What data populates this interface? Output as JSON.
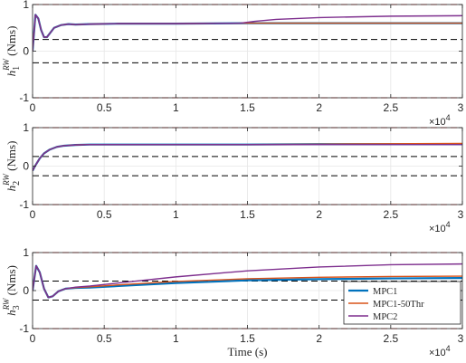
{
  "chart_data": [
    {
      "type": "line",
      "panel": 1,
      "ylabel_main": "h",
      "ylabel_sub": "1",
      "ylabel_sup": "RW",
      "ylabel_unit": " (Nms)",
      "xlim": [
        0,
        30000
      ],
      "ylim": [
        -1,
        1
      ],
      "xticks": [
        0,
        5000,
        10000,
        15000,
        20000,
        25000,
        30000
      ],
      "xtick_labels": [
        "0",
        "0.5",
        "1",
        "1.5",
        "2",
        "2.5",
        "3"
      ],
      "yticks": [
        -1,
        0,
        1
      ],
      "ytick_labels": [
        "-1",
        "0",
        "1"
      ],
      "x_exponent_base": "×10",
      "x_exponent_power": "4",
      "grid": true,
      "ref_lines": [
        {
          "y": 1,
          "style": "red-dashed"
        },
        {
          "y": -1,
          "style": "red-dashed"
        },
        {
          "y": 0.25,
          "style": "black-dashed"
        },
        {
          "y": -0.25,
          "style": "black-dashed"
        }
      ],
      "series": [
        {
          "name": "MPC1",
          "color": "#0072bd",
          "x": [
            0,
            200,
            400,
            600,
            800,
            1000,
            1200,
            1500,
            2000,
            2500,
            3000,
            4000,
            6000,
            10000,
            15000,
            20000,
            25000,
            30000
          ],
          "y": [
            0,
            0.78,
            0.7,
            0.45,
            0.3,
            0.3,
            0.38,
            0.5,
            0.56,
            0.58,
            0.57,
            0.58,
            0.59,
            0.59,
            0.6,
            0.6,
            0.6,
            0.6
          ]
        },
        {
          "name": "MPC1-50Thr",
          "color": "#d95319",
          "x": [
            0,
            200,
            400,
            600,
            800,
            1000,
            1200,
            1500,
            2000,
            2500,
            3000,
            4000,
            6000,
            10000,
            15000,
            20000,
            25000,
            30000
          ],
          "y": [
            0,
            0.78,
            0.7,
            0.45,
            0.3,
            0.3,
            0.38,
            0.5,
            0.56,
            0.58,
            0.57,
            0.58,
            0.59,
            0.59,
            0.6,
            0.6,
            0.6,
            0.6
          ]
        },
        {
          "name": "MPC2",
          "color": "#7e2f8e",
          "x": [
            0,
            200,
            400,
            600,
            800,
            1000,
            1200,
            1500,
            2000,
            2500,
            3000,
            4000,
            6000,
            10000,
            14500,
            15500,
            17000,
            20000,
            25000,
            30000
          ],
          "y": [
            0,
            0.78,
            0.7,
            0.45,
            0.3,
            0.3,
            0.38,
            0.5,
            0.56,
            0.58,
            0.57,
            0.58,
            0.59,
            0.59,
            0.6,
            0.64,
            0.68,
            0.72,
            0.75,
            0.76
          ]
        }
      ]
    },
    {
      "type": "line",
      "panel": 2,
      "ylabel_main": "h",
      "ylabel_sub": "2",
      "ylabel_sup": "RW",
      "ylabel_unit": " (Nms)",
      "xlim": [
        0,
        30000
      ],
      "ylim": [
        -1,
        1
      ],
      "xticks": [
        0,
        5000,
        10000,
        15000,
        20000,
        25000,
        30000
      ],
      "xtick_labels": [
        "0",
        "0.5",
        "1",
        "1.5",
        "2",
        "2.5",
        "3"
      ],
      "yticks": [
        -1,
        0,
        1
      ],
      "ytick_labels": [
        "-1",
        "0",
        "1"
      ],
      "x_exponent_base": "×10",
      "x_exponent_power": "4",
      "grid": true,
      "ref_lines": [
        {
          "y": 1,
          "style": "red-dashed"
        },
        {
          "y": -1,
          "style": "red-dashed"
        },
        {
          "y": 0.25,
          "style": "black-dashed"
        },
        {
          "y": -0.25,
          "style": "black-dashed"
        }
      ],
      "series": [
        {
          "name": "MPC1",
          "color": "#0072bd",
          "x": [
            0,
            200,
            500,
            800,
            1200,
            1700,
            2200,
            3000,
            4000,
            6000,
            10000,
            15000,
            20000,
            25000,
            30000
          ],
          "y": [
            -0.12,
            0.02,
            0.2,
            0.33,
            0.43,
            0.5,
            0.53,
            0.55,
            0.56,
            0.56,
            0.56,
            0.56,
            0.57,
            0.57,
            0.57
          ]
        },
        {
          "name": "MPC1-50Thr",
          "color": "#d95319",
          "x": [
            0,
            200,
            500,
            800,
            1200,
            1700,
            2200,
            3000,
            4000,
            6000,
            10000,
            15000,
            20000,
            25000,
            30000
          ],
          "y": [
            -0.12,
            0.02,
            0.2,
            0.33,
            0.43,
            0.5,
            0.53,
            0.55,
            0.56,
            0.56,
            0.56,
            0.56,
            0.57,
            0.58,
            0.59
          ]
        },
        {
          "name": "MPC2",
          "color": "#7e2f8e",
          "x": [
            0,
            200,
            500,
            800,
            1200,
            1700,
            2200,
            3000,
            4000,
            6000,
            10000,
            15000,
            20000,
            25000,
            30000
          ],
          "y": [
            -0.12,
            0.02,
            0.2,
            0.33,
            0.43,
            0.5,
            0.53,
            0.55,
            0.56,
            0.56,
            0.56,
            0.56,
            0.56,
            0.56,
            0.56
          ]
        }
      ]
    },
    {
      "type": "line",
      "panel": 3,
      "ylabel_main": "h",
      "ylabel_sub": "3",
      "ylabel_sup": "RW",
      "ylabel_unit": " (Nms)",
      "xlabel": "Time (s)",
      "xlim": [
        0,
        30000
      ],
      "ylim": [
        -1,
        1
      ],
      "xticks": [
        0,
        5000,
        10000,
        15000,
        20000,
        25000,
        30000
      ],
      "xtick_labels": [
        "0",
        "0.5",
        "1",
        "1.5",
        "2",
        "2.5",
        "3"
      ],
      "yticks": [
        -1,
        0,
        1
      ],
      "ytick_labels": [
        "-1",
        "0",
        "1"
      ],
      "x_exponent_base": "×10",
      "x_exponent_power": "4",
      "grid": true,
      "legend": "bottom-right",
      "ref_lines": [
        {
          "y": 1,
          "style": "red-dashed"
        },
        {
          "y": -1,
          "style": "red-dashed"
        },
        {
          "y": 0.25,
          "style": "black-dashed"
        },
        {
          "y": -0.25,
          "style": "black-dashed"
        }
      ],
      "series": [
        {
          "name": "MPC1",
          "color": "#0072bd",
          "x": [
            0,
            250,
            500,
            800,
            1100,
            1400,
            1800,
            2300,
            3000,
            4000,
            6000,
            10000,
            15000,
            20000,
            25000,
            30000
          ],
          "y": [
            0,
            0.65,
            0.48,
            0.05,
            -0.18,
            -0.15,
            -0.02,
            0.05,
            0.07,
            0.08,
            0.12,
            0.2,
            0.27,
            0.3,
            0.32,
            0.33
          ]
        },
        {
          "name": "MPC1-50Thr",
          "color": "#d95319",
          "x": [
            0,
            250,
            500,
            800,
            1100,
            1400,
            1800,
            2300,
            3000,
            4000,
            6000,
            10000,
            15000,
            20000,
            25000,
            30000
          ],
          "y": [
            0,
            0.65,
            0.48,
            0.05,
            -0.18,
            -0.15,
            -0.02,
            0.05,
            0.08,
            0.1,
            0.15,
            0.24,
            0.31,
            0.35,
            0.37,
            0.38
          ]
        },
        {
          "name": "MPC2",
          "color": "#7e2f8e",
          "x": [
            0,
            250,
            500,
            800,
            1100,
            1400,
            1800,
            2300,
            3000,
            4000,
            6000,
            10000,
            15000,
            20000,
            25000,
            30000
          ],
          "y": [
            0,
            0.65,
            0.48,
            0.05,
            -0.18,
            -0.15,
            -0.02,
            0.05,
            0.09,
            0.12,
            0.2,
            0.36,
            0.52,
            0.62,
            0.68,
            0.7
          ]
        }
      ]
    }
  ]
}
